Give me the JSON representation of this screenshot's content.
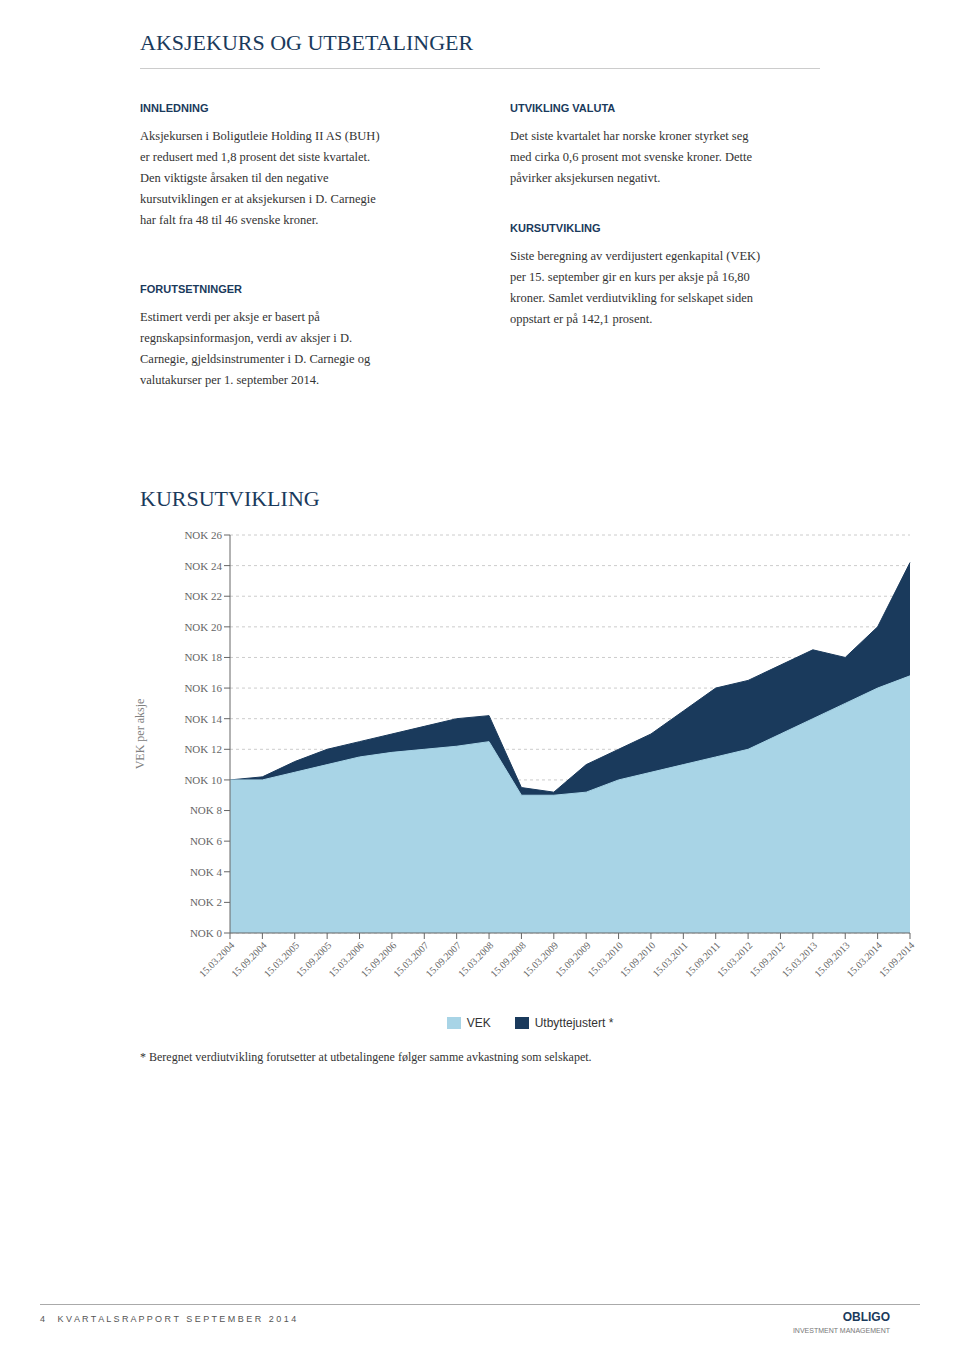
{
  "page_title": "AKSJEKURS OG UTBETALINGER",
  "sections": [
    {
      "header": "INNLEDNING",
      "lines": [
        "Aksjekursen i Boligutleie Holding II AS (BUH)",
        "er redusert med 1,8 prosent det siste kvartalet.",
        "Den viktigste årsaken til den negative",
        "kursutviklingen er at aksjekursen i D. Carnegie",
        "har falt fra 48 til 46 svenske kroner."
      ]
    },
    {
      "header": "FORUTSETNINGER",
      "lines": [
        "Estimert verdi per aksje er basert på",
        "regnskapsinformasjon, verdi av aksjer i D.",
        "Carnegie, gjeldsinstrumenter i D. Carnegie og",
        "valutakurser per 1. september 2014."
      ]
    },
    {
      "header": "UTVIKLING VALUTA",
      "lines": [
        "Det siste kvartalet har norske kroner styrket seg",
        "med cirka 0,6 prosent mot svenske kroner. Dette",
        "påvirker aksjekursen negativt."
      ]
    },
    {
      "header": "KURSUTVIKLING",
      "lines": [
        "Siste beregning av verdijustert egenkapital (VEK)",
        "per 15. september gir en kurs per aksje på 16,80",
        "kroner. Samlet verdiutvikling for selskapet siden",
        "oppstart er på 142,1 prosent."
      ]
    }
  ],
  "chart_data": {
    "type": "area",
    "title": "KURSUTVIKLING",
    "y_label": "VEK per aksje",
    "categories": [
      "15.03.2004",
      "15.09.2004",
      "15.03.2005",
      "15.09.2005",
      "15.03.2006",
      "15.09.2006",
      "15.03.2007",
      "15.09.2007",
      "15.03.2008",
      "15.09.2008",
      "15.03.2009",
      "15.09.2009",
      "15.03.2010",
      "15.09.2010",
      "15.03.2011",
      "15.09.2011",
      "15.03.2012",
      "15.09.2012",
      "15.03.2013",
      "15.09.2013",
      "15.03.2014",
      "15.09.2014"
    ],
    "series": [
      {
        "name": "VEK",
        "color": "#a8d4e6",
        "values": [
          10.0,
          10.0,
          10.5,
          11.0,
          11.5,
          11.8,
          12.0,
          12.2,
          12.5,
          9.0,
          9.0,
          9.2,
          10.0,
          10.5,
          11.0,
          11.5,
          12.0,
          13.0,
          14.0,
          15.0,
          16.0,
          16.8
        ]
      },
      {
        "name": "Utbyttejustert *",
        "color": "#1a3a5c",
        "values": [
          10.0,
          10.2,
          11.2,
          12.0,
          12.5,
          13.0,
          13.5,
          14.0,
          14.2,
          9.5,
          9.2,
          11.0,
          12.0,
          13.0,
          14.5,
          16.0,
          16.5,
          17.5,
          18.5,
          18.0,
          20.0,
          24.2
        ]
      }
    ],
    "ylim": [
      0,
      26
    ],
    "yticks": [
      {
        "value": 0,
        "label": "NOK 0"
      },
      {
        "value": 2,
        "label": "NOK 2"
      },
      {
        "value": 4,
        "label": "NOK 4"
      },
      {
        "value": 6,
        "label": "NOK 6"
      },
      {
        "value": 8,
        "label": "NOK 8"
      },
      {
        "value": 10,
        "label": "NOK 10"
      },
      {
        "value": 12,
        "label": "NOK 12"
      },
      {
        "value": 14,
        "label": "NOK 14"
      },
      {
        "value": 16,
        "label": "NOK 16"
      },
      {
        "value": 18,
        "label": "NOK 18"
      },
      {
        "value": 20,
        "label": "NOK 20"
      },
      {
        "value": 22,
        "label": "NOK 22"
      },
      {
        "value": 24,
        "label": "NOK 24"
      },
      {
        "value": 26,
        "label": "NOK 26"
      }
    ],
    "grid": true,
    "legend": "bottom"
  },
  "footnote": "* Beregnet verdiutvikling forutsetter at utbetalingene følger samme avkastning som selskapet.",
  "footer": [
    "4     K V A R T A L S R A P P O R T   S E P T E M B E R   2 0 1 4",
    "OBLIGO",
    "INVESTMENT MANAGEMENT"
  ]
}
